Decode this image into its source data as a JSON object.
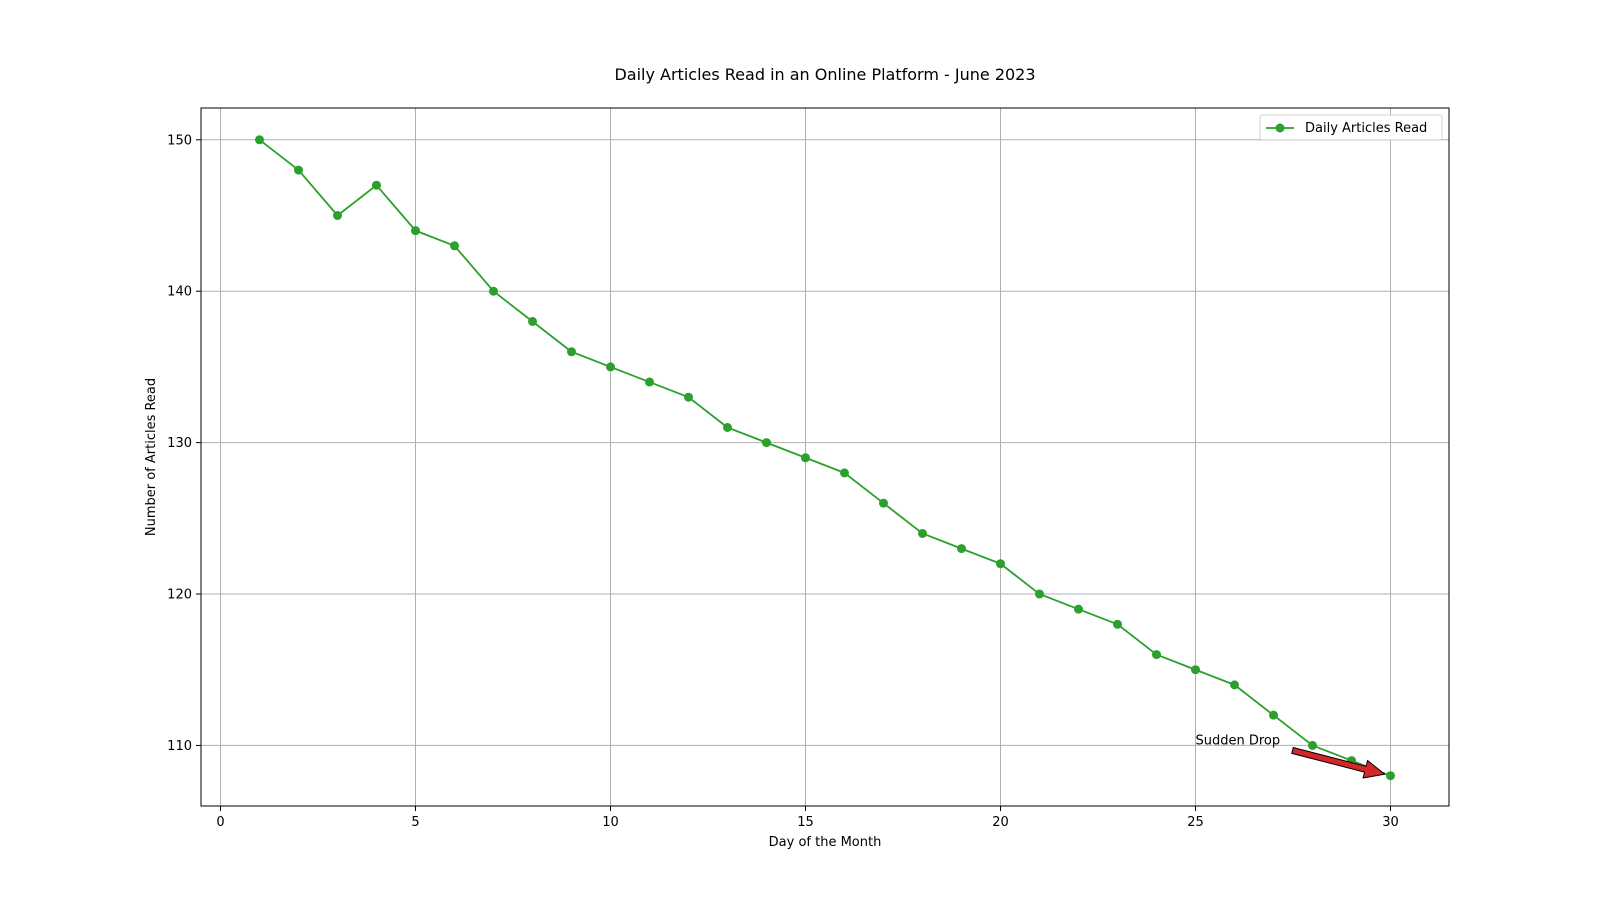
{
  "chart_data": {
    "type": "line",
    "title": "Daily Articles Read in an Online Platform - June 2023",
    "xlabel": "Day of the Month",
    "ylabel": "Number of Articles Read",
    "xlim": [
      -0.5,
      31.5
    ],
    "ylim": [
      106,
      152.1
    ],
    "xticks": [
      0,
      5,
      10,
      15,
      20,
      25,
      30
    ],
    "yticks": [
      110,
      120,
      130,
      140,
      150
    ],
    "grid": true,
    "legend": {
      "position": "top-right",
      "entries": [
        "Daily Articles Read"
      ]
    },
    "series": [
      {
        "name": "Daily Articles Read",
        "color": "#2ca02c",
        "marker": "circle",
        "x": [
          1,
          2,
          3,
          4,
          5,
          6,
          7,
          8,
          9,
          10,
          11,
          12,
          13,
          14,
          15,
          16,
          17,
          18,
          19,
          20,
          21,
          22,
          23,
          24,
          25,
          26,
          27,
          28,
          29,
          30
        ],
        "y": [
          150,
          148,
          145,
          147,
          144,
          143,
          140,
          138,
          136,
          135,
          134,
          133,
          131,
          130,
          129,
          128,
          126,
          124,
          123,
          122,
          120,
          119,
          118,
          116,
          115,
          114,
          112,
          110,
          109,
          108
        ]
      }
    ],
    "annotations": [
      {
        "text": "Sudden Drop",
        "x": 25,
        "y": 110,
        "arrow_to": [
          30,
          108
        ],
        "arrow_color": "#d62728"
      }
    ]
  }
}
